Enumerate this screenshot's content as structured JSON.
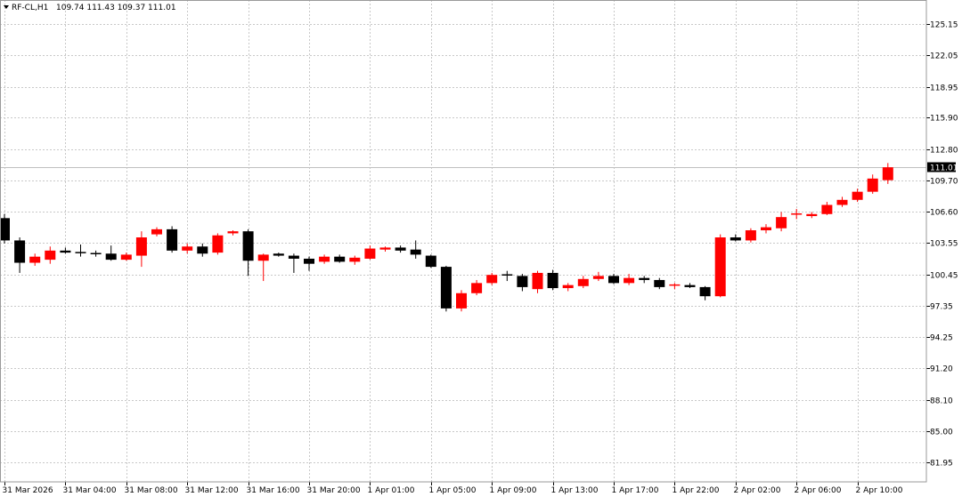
{
  "header": {
    "symbol": "RF-CL,H1",
    "ohlc": "109.74 111.43 109.37 111.01"
  },
  "colors": {
    "up": "#ff0000",
    "down": "#000000",
    "grid": "#c8c8c8",
    "frame": "#9a9a9a",
    "bid_line": "#c0c0c0",
    "price_badge_bg": "#000000",
    "price_badge_fg": "#ffffff"
  },
  "chart_data": {
    "type": "candlestick",
    "timeframe": "H1",
    "ylim": [
      80.0,
      127.5
    ],
    "y_ticks": [
      "125.15",
      "122.05",
      "118.95",
      "115.90",
      "112.80",
      "109.70",
      "106.60",
      "103.55",
      "100.45",
      "97.35",
      "94.25",
      "91.20",
      "88.10",
      "85.00",
      "81.95"
    ],
    "x_ticks": [
      {
        "label": "31 Mar 2026",
        "index": 0
      },
      {
        "label": "31 Mar 04:00",
        "index": 4
      },
      {
        "label": "31 Mar 08:00",
        "index": 8
      },
      {
        "label": "31 Mar 12:00",
        "index": 12
      },
      {
        "label": "31 Mar 16:00",
        "index": 16
      },
      {
        "label": "31 Mar 20:00",
        "index": 20
      },
      {
        "label": "1 Apr 01:00",
        "index": 24
      },
      {
        "label": "1 Apr 05:00",
        "index": 28
      },
      {
        "label": "1 Apr 09:00",
        "index": 32
      },
      {
        "label": "1 Apr 13:00",
        "index": 36
      },
      {
        "label": "1 Apr 17:00",
        "index": 40
      },
      {
        "label": "1 Apr 22:00",
        "index": 44
      },
      {
        "label": "2 Apr 02:00",
        "index": 48
      },
      {
        "label": "2 Apr 06:00",
        "index": 52
      },
      {
        "label": "2 Apr 10:00",
        "index": 56
      }
    ],
    "current_price": "111.01",
    "current_price_value": 111.01,
    "candles": [
      [
        106.0,
        106.4,
        103.5,
        103.8
      ],
      [
        103.8,
        104.1,
        100.6,
        101.6
      ],
      [
        101.6,
        102.5,
        101.3,
        102.2
      ],
      [
        101.9,
        103.2,
        101.5,
        102.8
      ],
      [
        102.8,
        103.1,
        102.5,
        102.6
      ],
      [
        102.6,
        103.4,
        102.2,
        102.5
      ],
      [
        102.5,
        102.8,
        102.2,
        102.4
      ],
      [
        102.5,
        103.3,
        101.8,
        101.9
      ],
      [
        101.9,
        102.6,
        101.8,
        102.4
      ],
      [
        102.3,
        104.7,
        101.2,
        104.1
      ],
      [
        104.4,
        105.1,
        104.2,
        104.9
      ],
      [
        104.9,
        105.2,
        102.6,
        102.8
      ],
      [
        102.8,
        103.5,
        102.5,
        103.2
      ],
      [
        103.2,
        103.5,
        102.2,
        102.5
      ],
      [
        102.6,
        104.5,
        102.4,
        104.3
      ],
      [
        104.5,
        104.8,
        104.3,
        104.7
      ],
      [
        104.7,
        104.9,
        100.3,
        101.8
      ],
      [
        101.8,
        102.5,
        99.8,
        102.4
      ],
      [
        102.5,
        102.6,
        102.2,
        102.3
      ],
      [
        102.3,
        102.5,
        100.6,
        102.0
      ],
      [
        102.0,
        102.2,
        100.8,
        101.5
      ],
      [
        101.7,
        102.4,
        101.5,
        102.2
      ],
      [
        102.2,
        102.4,
        101.6,
        101.7
      ],
      [
        101.7,
        102.3,
        101.4,
        102.1
      ],
      [
        102.0,
        103.3,
        101.9,
        103.0
      ],
      [
        102.9,
        103.2,
        102.7,
        103.1
      ],
      [
        103.1,
        103.3,
        102.6,
        102.8
      ],
      [
        102.9,
        103.8,
        102.0,
        102.4
      ],
      [
        102.3,
        102.4,
        101.1,
        101.2
      ],
      [
        101.2,
        101.3,
        96.8,
        97.1
      ],
      [
        97.1,
        98.9,
        96.8,
        98.6
      ],
      [
        98.6,
        99.9,
        98.4,
        99.6
      ],
      [
        99.6,
        100.6,
        99.4,
        100.4
      ],
      [
        100.4,
        100.8,
        99.8,
        100.3
      ],
      [
        100.3,
        100.5,
        98.8,
        99.2
      ],
      [
        99.0,
        100.8,
        98.6,
        100.6
      ],
      [
        100.6,
        100.9,
        98.9,
        99.1
      ],
      [
        99.1,
        99.6,
        98.8,
        99.4
      ],
      [
        99.3,
        100.3,
        99.1,
        100.0
      ],
      [
        100.0,
        100.7,
        99.8,
        100.3
      ],
      [
        100.3,
        100.5,
        99.5,
        99.6
      ],
      [
        99.6,
        100.5,
        99.4,
        100.1
      ],
      [
        100.1,
        100.3,
        99.6,
        99.9
      ],
      [
        99.9,
        100.1,
        99.0,
        99.2
      ],
      [
        99.3,
        99.6,
        99.0,
        99.4
      ],
      [
        99.4,
        99.6,
        99.1,
        99.2
      ],
      [
        99.2,
        99.3,
        97.9,
        98.3
      ],
      [
        98.3,
        104.4,
        98.2,
        104.1
      ],
      [
        104.1,
        104.4,
        103.7,
        103.8
      ],
      [
        103.8,
        105.0,
        103.6,
        104.8
      ],
      [
        104.8,
        105.4,
        104.5,
        105.1
      ],
      [
        105.0,
        106.6,
        104.7,
        106.1
      ],
      [
        106.4,
        106.9,
        105.9,
        106.4
      ],
      [
        106.2,
        106.6,
        106.0,
        106.4
      ],
      [
        106.4,
        107.6,
        106.3,
        107.3
      ],
      [
        107.3,
        108.1,
        107.1,
        107.8
      ],
      [
        107.8,
        108.9,
        107.6,
        108.6
      ],
      [
        108.6,
        110.3,
        108.4,
        109.9
      ],
      [
        109.74,
        111.43,
        109.37,
        111.01
      ]
    ]
  }
}
